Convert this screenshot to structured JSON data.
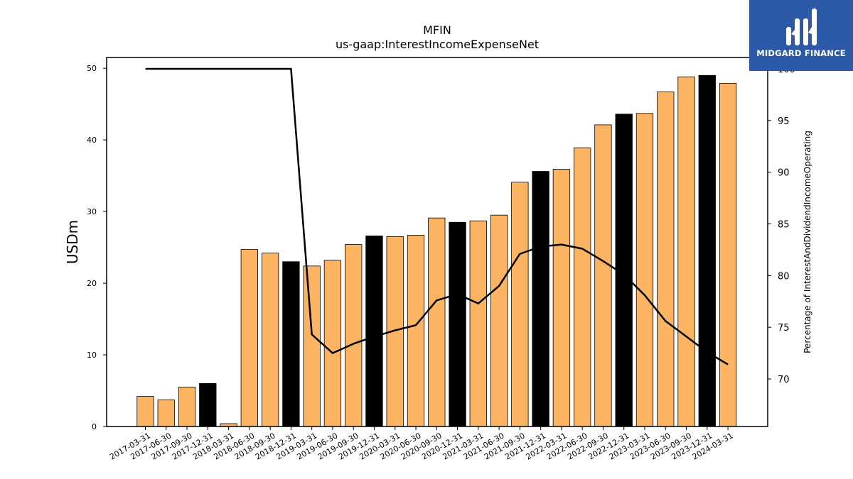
{
  "chart_data": {
    "type": "bar",
    "title": "MFIN",
    "subtitle": "us-gaap:InterestIncomeExpenseNet",
    "ylabel": "USDm",
    "y2label": "Percentage of InterestAndDividendIncomeOperating",
    "ylim": [
      0,
      51.5
    ],
    "y2lim": [
      65.4,
      101.1
    ],
    "yticks": [
      0,
      10,
      20,
      30,
      40,
      50
    ],
    "y2ticks": [
      70,
      75,
      80,
      85,
      90,
      95,
      100
    ],
    "categories": [
      "2017-03-31",
      "2017-06-30",
      "2017-09-30",
      "2017-12-31",
      "2018-03-31",
      "2018-06-30",
      "2018-09-30",
      "2018-12-31",
      "2019-03-31",
      "2019-06-30",
      "2019-09-30",
      "2019-12-31",
      "2020-03-31",
      "2020-06-30",
      "2020-09-30",
      "2020-12-31",
      "2021-03-31",
      "2021-06-30",
      "2021-09-30",
      "2021-12-31",
      "2022-03-31",
      "2022-06-30",
      "2022-09-30",
      "2022-12-31",
      "2023-03-31",
      "2023-06-30",
      "2023-09-30",
      "2023-12-31",
      "2024-03-31"
    ],
    "series": [
      {
        "type": "bar",
        "values": [
          4.2,
          3.7,
          5.5,
          6.0,
          0.4,
          24.7,
          24.2,
          23.0,
          22.4,
          23.2,
          25.4,
          26.6,
          26.5,
          26.7,
          29.1,
          28.5,
          28.7,
          29.5,
          34.1,
          35.6,
          35.9,
          38.9,
          42.1,
          43.6,
          43.7,
          46.7,
          48.8,
          49.0,
          47.9
        ],
        "highlight": [
          false,
          false,
          false,
          true,
          false,
          false,
          false,
          true,
          false,
          false,
          false,
          true,
          false,
          false,
          false,
          true,
          false,
          false,
          false,
          true,
          false,
          false,
          false,
          true,
          false,
          false,
          false,
          true,
          false
        ]
      },
      {
        "type": "line",
        "axis": "right",
        "values": [
          100.0,
          100.0,
          100.0,
          100.0,
          100.0,
          100.0,
          100.0,
          100.0,
          74.3,
          72.5,
          73.4,
          74.1,
          74.7,
          75.2,
          77.6,
          78.2,
          77.3,
          79.0,
          82.1,
          82.8,
          83.0,
          82.6,
          81.4,
          80.1,
          78.1,
          75.6,
          74.1,
          72.6,
          71.4
        ]
      }
    ],
    "colors": {
      "bar": "#fdb462",
      "bar_highlight": "#000000",
      "line": "#000000"
    },
    "grid": false,
    "logo": {
      "text": "MIDGARD FINANCE",
      "background": "#2d5aa8"
    }
  }
}
